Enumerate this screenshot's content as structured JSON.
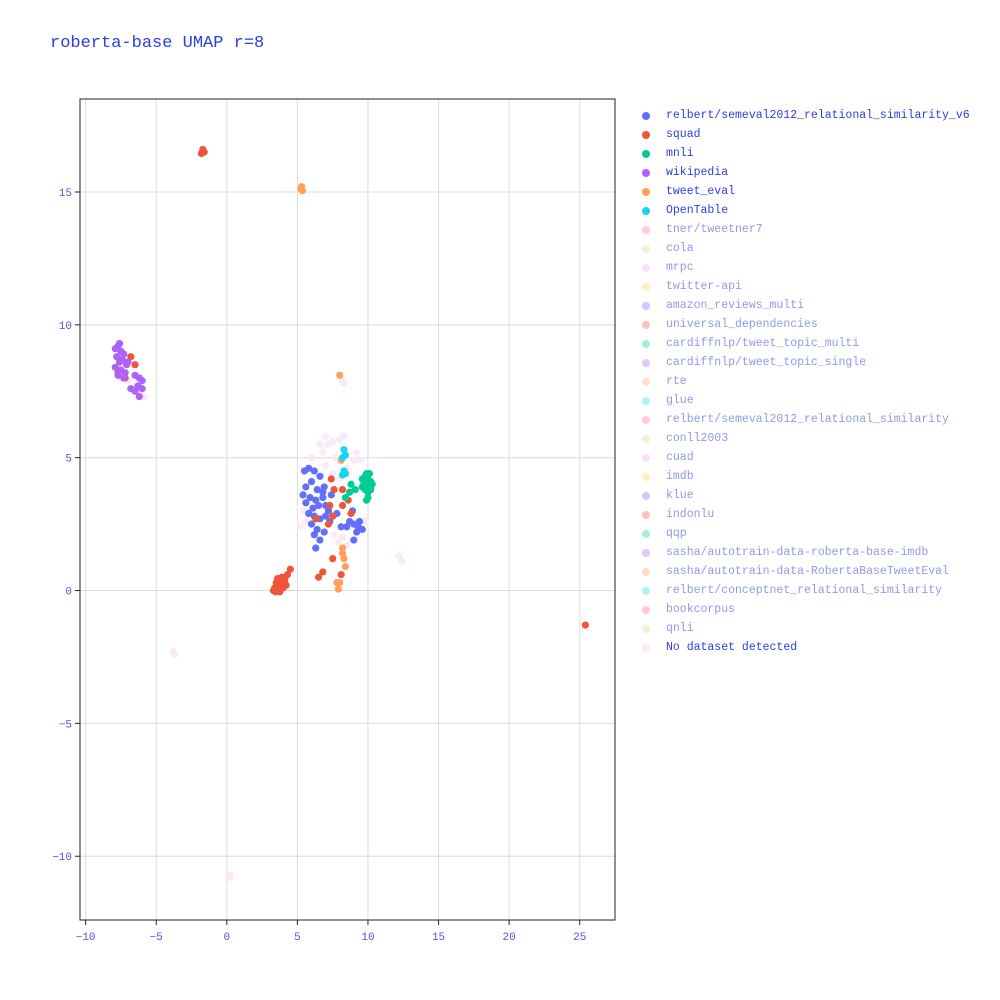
{
  "chart_data": {
    "type": "scatter",
    "title": "roberta-base UMAP r=8",
    "xlabel": "",
    "ylabel": "",
    "xlim": [
      -10.4,
      27.5
    ],
    "ylim": [
      -12.4,
      18.5
    ],
    "xticks": [
      -10,
      -5,
      0,
      5,
      10,
      15,
      20,
      25
    ],
    "yticks": [
      -10,
      -5,
      0,
      5,
      10,
      15
    ],
    "xtick_labels": [
      "−10",
      "−5",
      "0",
      "5",
      "10",
      "15",
      "20",
      "25"
    ],
    "ytick_labels": [
      "−10",
      "−5",
      "0",
      "5",
      "10",
      "15"
    ],
    "grid": true,
    "legend_position": "right",
    "series": [
      {
        "name": "relbert/semeval2012_relational_similarity_v6",
        "color": "#636efa",
        "visible": true,
        "points": [
          [
            5.5,
            4.5
          ],
          [
            5.8,
            4.6
          ],
          [
            6.2,
            4.5
          ],
          [
            6.6,
            4.3
          ],
          [
            6.0,
            4.1
          ],
          [
            5.6,
            3.9
          ],
          [
            6.4,
            3.8
          ],
          [
            6.9,
            3.9
          ],
          [
            5.4,
            3.6
          ],
          [
            5.9,
            3.5
          ],
          [
            6.3,
            3.4
          ],
          [
            6.8,
            3.5
          ],
          [
            5.6,
            3.3
          ],
          [
            6.1,
            3.1
          ],
          [
            6.5,
            3.2
          ],
          [
            7.0,
            3.2
          ],
          [
            6.2,
            2.8
          ],
          [
            6.6,
            2.7
          ],
          [
            7.0,
            2.8
          ],
          [
            6.0,
            2.5
          ],
          [
            6.4,
            2.3
          ],
          [
            6.9,
            2.2
          ],
          [
            6.6,
            1.9
          ],
          [
            6.3,
            1.6
          ],
          [
            7.4,
            3.6
          ],
          [
            7.2,
            3.0
          ],
          [
            8.1,
            2.4
          ],
          [
            8.5,
            2.4
          ],
          [
            9.0,
            2.5
          ],
          [
            9.3,
            2.4
          ],
          [
            9.6,
            2.3
          ],
          [
            9.2,
            2.2
          ],
          [
            9.0,
            1.9
          ],
          [
            8.7,
            2.6
          ],
          [
            9.4,
            2.6
          ],
          [
            8.9,
            3.0
          ],
          [
            6.2,
            2.1
          ],
          [
            5.8,
            2.9
          ],
          [
            6.8,
            3.7
          ],
          [
            7.3,
            2.6
          ],
          [
            7.8,
            2.9
          ]
        ]
      },
      {
        "name": "squad",
        "color": "#ef553b",
        "visible": true,
        "points": [
          [
            -1.7,
            16.6
          ],
          [
            -1.6,
            16.5
          ],
          [
            -1.8,
            16.45
          ],
          [
            -6.8,
            8.8
          ],
          [
            -6.5,
            8.5
          ],
          [
            -7.2,
            8.0
          ],
          [
            -7.7,
            8.2
          ],
          [
            3.4,
            0.1
          ],
          [
            3.6,
            0.0
          ],
          [
            3.8,
            0.2
          ],
          [
            4.0,
            0.1
          ],
          [
            3.5,
            0.3
          ],
          [
            3.7,
            0.35
          ],
          [
            3.9,
            0.3
          ],
          [
            3.3,
            0.0
          ],
          [
            3.45,
            -0.05
          ],
          [
            3.75,
            -0.05
          ],
          [
            4.1,
            0.4
          ],
          [
            4.3,
            0.6
          ],
          [
            4.5,
            0.8
          ],
          [
            4.2,
            0.2
          ],
          [
            3.6,
            0.45
          ],
          [
            3.9,
            0.5
          ],
          [
            6.5,
            0.5
          ],
          [
            6.8,
            0.7
          ],
          [
            7.5,
            1.2
          ],
          [
            7.2,
            2.5
          ],
          [
            7.5,
            2.8
          ],
          [
            7.3,
            3.2
          ],
          [
            7.6,
            3.8
          ],
          [
            7.4,
            4.2
          ],
          [
            8.2,
            3.8
          ],
          [
            8.2,
            3.2
          ],
          [
            8.8,
            2.9
          ],
          [
            8.1,
            0.6
          ],
          [
            9.8,
            3.9
          ],
          [
            25.4,
            -1.3
          ],
          [
            8.6,
            3.4
          ],
          [
            6.3,
            2.7
          ]
        ]
      },
      {
        "name": "mnli",
        "color": "#00cc96",
        "visible": true,
        "points": [
          [
            9.6,
            4.2
          ],
          [
            9.8,
            4.3
          ],
          [
            10.0,
            4.2
          ],
          [
            10.2,
            4.1
          ],
          [
            9.7,
            4.0
          ],
          [
            9.9,
            4.0
          ],
          [
            10.1,
            3.9
          ],
          [
            10.3,
            4.0
          ],
          [
            9.8,
            3.8
          ],
          [
            10.0,
            3.7
          ],
          [
            10.2,
            3.8
          ],
          [
            9.9,
            4.4
          ],
          [
            10.1,
            4.4
          ],
          [
            9.6,
            3.9
          ],
          [
            10.0,
            3.5
          ],
          [
            9.9,
            3.4
          ],
          [
            8.4,
            3.5
          ],
          [
            8.7,
            3.7
          ],
          [
            9.1,
            3.8
          ],
          [
            8.8,
            4.0
          ]
        ]
      },
      {
        "name": "wikipedia",
        "color": "#ab63fa",
        "visible": true,
        "points": [
          [
            -7.9,
            9.1
          ],
          [
            -7.7,
            9.2
          ],
          [
            -7.5,
            9.0
          ],
          [
            -7.3,
            8.9
          ],
          [
            -7.8,
            8.8
          ],
          [
            -7.6,
            8.6
          ],
          [
            -7.4,
            8.7
          ],
          [
            -7.1,
            8.5
          ],
          [
            -7.9,
            8.4
          ],
          [
            -7.5,
            8.3
          ],
          [
            -7.2,
            8.2
          ],
          [
            -7.0,
            8.6
          ],
          [
            -7.7,
            8.1
          ],
          [
            -7.3,
            8.0
          ],
          [
            -6.5,
            8.1
          ],
          [
            -6.2,
            8.0
          ],
          [
            -6.0,
            7.9
          ],
          [
            -6.3,
            7.7
          ],
          [
            -6.5,
            7.5
          ],
          [
            -6.2,
            7.3
          ],
          [
            -6.8,
            7.6
          ],
          [
            -7.6,
            9.3
          ],
          [
            -6.0,
            7.6
          ]
        ]
      },
      {
        "name": "tweet_eval",
        "color": "#ffa15a",
        "visible": true,
        "points": [
          [
            5.3,
            15.2
          ],
          [
            5.35,
            15.05
          ],
          [
            5.25,
            15.1
          ],
          [
            8.0,
            8.1
          ],
          [
            8.2,
            1.6
          ],
          [
            8.3,
            1.2
          ],
          [
            8.4,
            0.9
          ],
          [
            8.2,
            1.4
          ],
          [
            8.0,
            0.3
          ],
          [
            7.9,
            0.05
          ],
          [
            7.8,
            0.3
          ],
          [
            8.1,
            4.9
          ]
        ]
      },
      {
        "name": "OpenTable",
        "color": "#19d3f3",
        "visible": true,
        "points": [
          [
            8.3,
            5.3
          ],
          [
            8.4,
            5.1
          ],
          [
            8.2,
            5.0
          ],
          [
            8.3,
            4.5
          ],
          [
            8.4,
            4.4
          ],
          [
            8.2,
            4.35
          ]
        ]
      },
      {
        "name": "tner/tweetner7",
        "color": "#ff6692",
        "visible": false,
        "points": []
      },
      {
        "name": "cola",
        "color": "#b6e880",
        "visible": false,
        "points": []
      },
      {
        "name": "mrpc",
        "color": "#ff97ff",
        "visible": false,
        "points": []
      },
      {
        "name": "twitter-api",
        "color": "#fecb52",
        "visible": false,
        "points": []
      },
      {
        "name": "amazon_reviews_multi",
        "color": "#636efa",
        "visible": false,
        "points": []
      },
      {
        "name": "universal_dependencies",
        "color": "#ef553b",
        "visible": false,
        "points": []
      },
      {
        "name": "cardiffnlp/tweet_topic_multi",
        "color": "#00cc96",
        "visible": false,
        "points": []
      },
      {
        "name": "cardiffnlp/tweet_topic_single",
        "color": "#ab63fa",
        "visible": false,
        "points": []
      },
      {
        "name": "rte",
        "color": "#ffa15a",
        "visible": false,
        "points": []
      },
      {
        "name": "glue",
        "color": "#19d3f3",
        "visible": false,
        "points": []
      },
      {
        "name": "relbert/semeval2012_relational_similarity",
        "color": "#ff6692",
        "visible": false,
        "points": []
      },
      {
        "name": "conll2003",
        "color": "#b6e880",
        "visible": false,
        "points": []
      },
      {
        "name": "cuad",
        "color": "#ff97ff",
        "visible": false,
        "points": []
      },
      {
        "name": "imdb",
        "color": "#fecb52",
        "visible": false,
        "points": []
      },
      {
        "name": "klue",
        "color": "#636efa",
        "visible": false,
        "points": []
      },
      {
        "name": "indonlu",
        "color": "#ef553b",
        "visible": false,
        "points": []
      },
      {
        "name": "qqp",
        "color": "#00cc96",
        "visible": false,
        "points": []
      },
      {
        "name": "sasha/autotrain-data-roberta-base-imdb",
        "color": "#ab63fa",
        "visible": false,
        "points": []
      },
      {
        "name": "sasha/autotrain-data-RobertaBaseTweetEval",
        "color": "#ffa15a",
        "visible": false,
        "points": []
      },
      {
        "name": "relbert/conceptnet_relational_similarity",
        "color": "#19d3f3",
        "visible": false,
        "points": []
      },
      {
        "name": "bookcorpus",
        "color": "#ff6692",
        "visible": false,
        "points": []
      },
      {
        "name": "qnli",
        "color": "#b6e880",
        "visible": false,
        "points": []
      },
      {
        "name": "No dataset detected",
        "color": "#fde8f8",
        "visible": true,
        "points": [
          [
            -7.5,
            8.0
          ],
          [
            -6.2,
            7.4
          ],
          [
            -5.9,
            7.3
          ],
          [
            -7.0,
            7.9
          ],
          [
            -3.8,
            -2.3
          ],
          [
            -3.7,
            -2.4
          ],
          [
            0.2,
            -10.7
          ],
          [
            0.25,
            -10.8
          ],
          [
            7.0,
            5.8
          ],
          [
            7.2,
            5.5
          ],
          [
            6.8,
            5.2
          ],
          [
            7.5,
            5.6
          ],
          [
            8.0,
            5.7
          ],
          [
            8.3,
            5.8
          ],
          [
            6.0,
            5.0
          ],
          [
            8.5,
            4.6
          ],
          [
            9.0,
            4.9
          ],
          [
            9.5,
            4.9
          ],
          [
            5.5,
            3.0
          ],
          [
            5.2,
            2.4
          ],
          [
            5.6,
            2.6
          ],
          [
            7.0,
            4.7
          ],
          [
            7.5,
            4.4
          ],
          [
            8.0,
            4.2
          ],
          [
            8.6,
            4.4
          ],
          [
            8.2,
            2.0
          ],
          [
            8.5,
            1.7
          ],
          [
            7.6,
            2.1
          ],
          [
            8.3,
            7.8
          ],
          [
            8.2,
            7.9
          ],
          [
            12.2,
            1.3
          ],
          [
            12.4,
            1.1
          ],
          [
            7.7,
            5.0
          ],
          [
            9.2,
            5.2
          ],
          [
            6.6,
            5.5
          ],
          [
            9.8,
            2.6
          ],
          [
            7.9,
            1.8
          ]
        ]
      }
    ]
  }
}
